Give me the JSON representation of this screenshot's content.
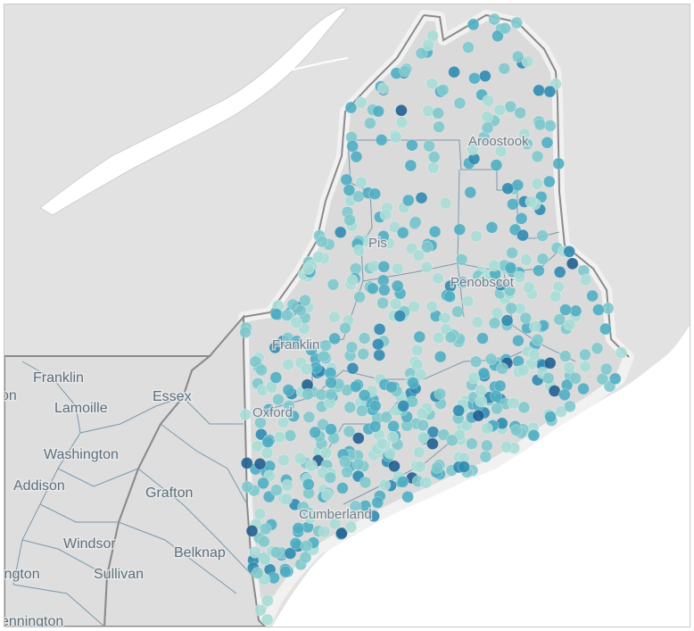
{
  "map": {
    "colors": {
      "land_background": "#e1e1e1",
      "water": "#ffffff",
      "state_fill": "#dedede",
      "state_border": "#8a8a8a",
      "county_border": "#7c98ab",
      "halo": "#f2f2f2",
      "point_scale": [
        "#a8dcd6",
        "#7ec8cc",
        "#4fadc2",
        "#2f8bb0",
        "#1f5f8f"
      ]
    },
    "labels": {
      "vermont_counties": {
        "franklin": "Franklin",
        "lamoille": "Lamoille",
        "washington": "Washington",
        "addison": "Addison",
        "windsor": "Windsor",
        "bennington_partial": "ennington",
        "rutland_partial": "on",
        "bennington_partial_2": "ington"
      },
      "nh_counties": {
        "essex": "Essex",
        "grafton": "Grafton",
        "belknap": "Belknap",
        "sullivan": "Sullivan"
      },
      "maine_counties": {
        "aroostook": "Aroostook",
        "piscataquis": "Pis",
        "penobscot": "Penobscot",
        "franklin": "Franklin",
        "oxford": "Oxford",
        "cumberland": "Cumberland"
      }
    }
  }
}
